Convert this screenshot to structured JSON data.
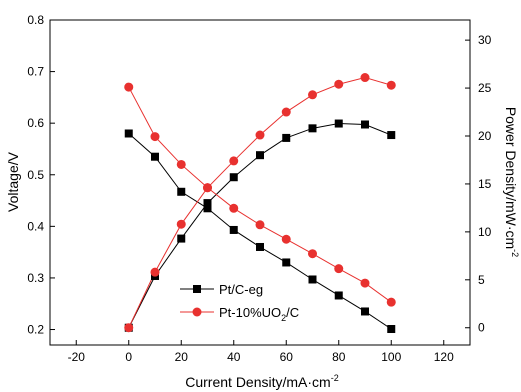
{
  "chart_data": {
    "type": "line",
    "x": {
      "label": "Current Density/mA·cm",
      "label_sup": "-2",
      "range": [
        -30,
        130
      ],
      "ticks": [
        -20,
        0,
        20,
        40,
        60,
        80,
        100,
        120
      ]
    },
    "y_left": {
      "label": "Voltage/V",
      "range": [
        0.17,
        0.8
      ],
      "ticks": [
        0.2,
        0.3,
        0.4,
        0.5,
        0.6,
        0.7,
        0.8
      ],
      "tick_labels": [
        "0.2",
        "0.3",
        "0.4",
        "0.5",
        "0.6",
        "0.7",
        "0.8"
      ]
    },
    "y_right": {
      "label": "Power Density/mW·cm",
      "label_sup": "-2",
      "range": [
        -1.8,
        32.1
      ],
      "ticks": [
        0,
        5,
        10,
        15,
        20,
        25,
        30
      ]
    },
    "legend": {
      "placement": "bottom-center",
      "entries": [
        {
          "series": "Pt/C-eg",
          "text": "Pt/C-eg",
          "sub": "",
          "after": ""
        },
        {
          "series": "Pt-10%UO2/C",
          "text": "Pt-10%UO",
          "sub": "2",
          "after": "/C"
        }
      ]
    },
    "series": [
      {
        "name": "Pt/C-eg",
        "color": "#000000",
        "marker": "square",
        "x": [
          0,
          10,
          20,
          30,
          40,
          50,
          60,
          70,
          80,
          90,
          100
        ],
        "voltage": [
          0.58,
          0.535,
          0.467,
          0.435,
          0.393,
          0.36,
          0.33,
          0.297,
          0.266,
          0.235,
          0.201
        ],
        "power": [
          0,
          5.4,
          9.3,
          13.0,
          15.7,
          18.0,
          19.8,
          20.8,
          21.3,
          21.2,
          20.1
        ]
      },
      {
        "name": "Pt-10%UO2/C",
        "color": "#e8312f",
        "marker": "circle",
        "x": [
          0,
          10,
          20,
          30,
          40,
          50,
          60,
          70,
          80,
          90,
          100
        ],
        "voltage": [
          0.67,
          0.574,
          0.52,
          0.475,
          0.435,
          0.403,
          0.375,
          0.347,
          0.318,
          0.29,
          0.253
        ],
        "power": [
          0,
          5.8,
          10.8,
          14.6,
          17.4,
          20.1,
          22.5,
          24.3,
          25.4,
          26.1,
          25.3
        ]
      }
    ]
  }
}
